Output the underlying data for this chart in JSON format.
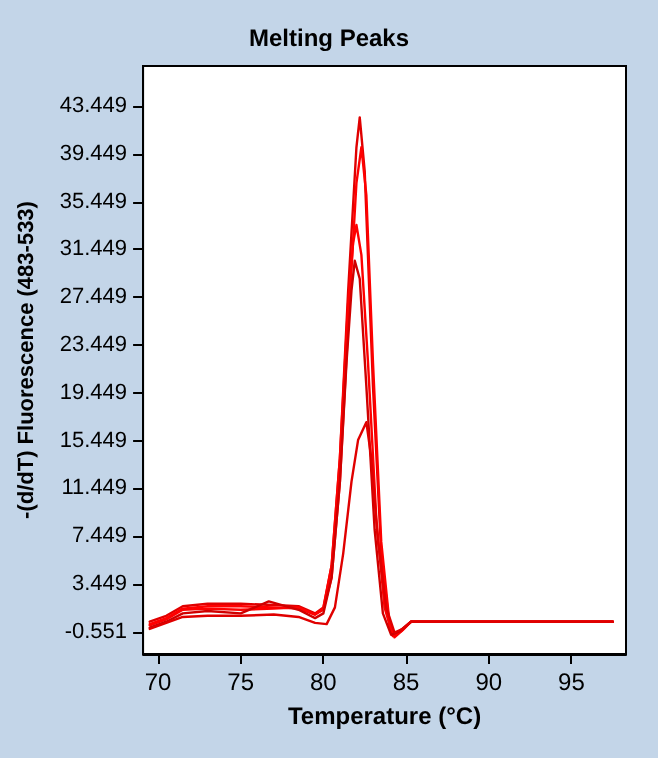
{
  "chart_data": {
    "type": "line",
    "title": "Melting Peaks",
    "xlabel": "Temperature (°C)",
    "ylabel": "-(d/dT) Fluorescence (483-533)",
    "xlim": [
      69.1,
      98.3
    ],
    "xticks": [
      70,
      75,
      80,
      85,
      90,
      95
    ],
    "ylim": [
      -2.4,
      46.8
    ],
    "yticks": [
      -0.551,
      3.449,
      7.449,
      11.449,
      15.449,
      19.449,
      23.449,
      27.449,
      31.449,
      35.449,
      39.449,
      43.449
    ],
    "grid": false,
    "marker": "none",
    "line_style": "solid",
    "series": [
      {
        "color": "#e00000",
        "x": [
          69.5,
          70.5,
          71.5,
          73,
          75,
          77,
          78.5,
          79.5,
          80,
          80.5,
          81,
          81.5,
          82,
          82.2,
          82.5,
          83,
          83.5,
          84,
          84.3,
          84.8,
          85.3,
          90,
          97.5
        ],
        "values": [
          0.3,
          0.8,
          1.6,
          1.8,
          1.8,
          1.7,
          1.6,
          1.0,
          1.5,
          5,
          14,
          28,
          40,
          42.5,
          38,
          20,
          6,
          0.0,
          -0.8,
          -0.3,
          0.3,
          0.3,
          0.3
        ]
      },
      {
        "color": "#ff0000",
        "x": [
          69.5,
          70.5,
          71.5,
          73,
          75,
          77,
          78.5,
          79.5,
          80,
          80.5,
          81,
          81.5,
          82,
          82.3,
          82.6,
          83,
          83.5,
          84,
          84.3,
          84.8,
          85.3,
          90,
          97.5
        ],
        "values": [
          0.1,
          0.6,
          1.4,
          1.6,
          1.6,
          1.5,
          1.4,
          0.9,
          1.3,
          4,
          12,
          25,
          37,
          40,
          36,
          22,
          7,
          0.2,
          -1.0,
          -0.4,
          0.3,
          0.3,
          0.3
        ]
      },
      {
        "color": "#ff0000",
        "x": [
          69.5,
          70.5,
          71.5,
          73,
          75,
          77,
          78.5,
          79.5,
          80,
          80.5,
          81,
          81.5,
          81.8,
          82,
          82.3,
          82.7,
          83.2,
          83.7,
          84.2,
          84.7,
          85.3,
          90,
          97.5
        ],
        "values": [
          0.0,
          0.5,
          1.3,
          1.4,
          1.3,
          1.4,
          1.5,
          0.9,
          1.4,
          5,
          14,
          27,
          32,
          33.5,
          31,
          22,
          9,
          1.5,
          -0.9,
          -0.5,
          0.3,
          0.3,
          0.3
        ]
      },
      {
        "color": "#d00000",
        "x": [
          69.5,
          70.5,
          71.5,
          73,
          75,
          76.7,
          78.5,
          79.5,
          80,
          80.5,
          81,
          81.4,
          81.7,
          81.9,
          82.2,
          82.6,
          83.1,
          83.6,
          84.1,
          84.6,
          85.3,
          90,
          97.5
        ],
        "values": [
          -0.2,
          0.3,
          1.0,
          1.2,
          1.0,
          2.0,
          1.3,
          0.6,
          1.0,
          4,
          12,
          22,
          28,
          30.5,
          29,
          20,
          8,
          1.0,
          -0.8,
          -0.5,
          0.3,
          0.3,
          0.3
        ]
      },
      {
        "color": "#e00000",
        "x": [
          69.5,
          70.5,
          71.5,
          73,
          75,
          77,
          78.5,
          79.5,
          80.2,
          80.7,
          81.2,
          81.7,
          82.1,
          82.6,
          82.9,
          83.3,
          83.8,
          84.3,
          84.8,
          85.3,
          90,
          97.5
        ],
        "values": [
          -0.3,
          0.2,
          0.7,
          0.8,
          0.8,
          0.9,
          0.7,
          0.2,
          0.1,
          1.5,
          6,
          12,
          15.5,
          17,
          14,
          7,
          1.5,
          -0.6,
          -0.3,
          0.3,
          0.3,
          0.3
        ]
      }
    ]
  }
}
